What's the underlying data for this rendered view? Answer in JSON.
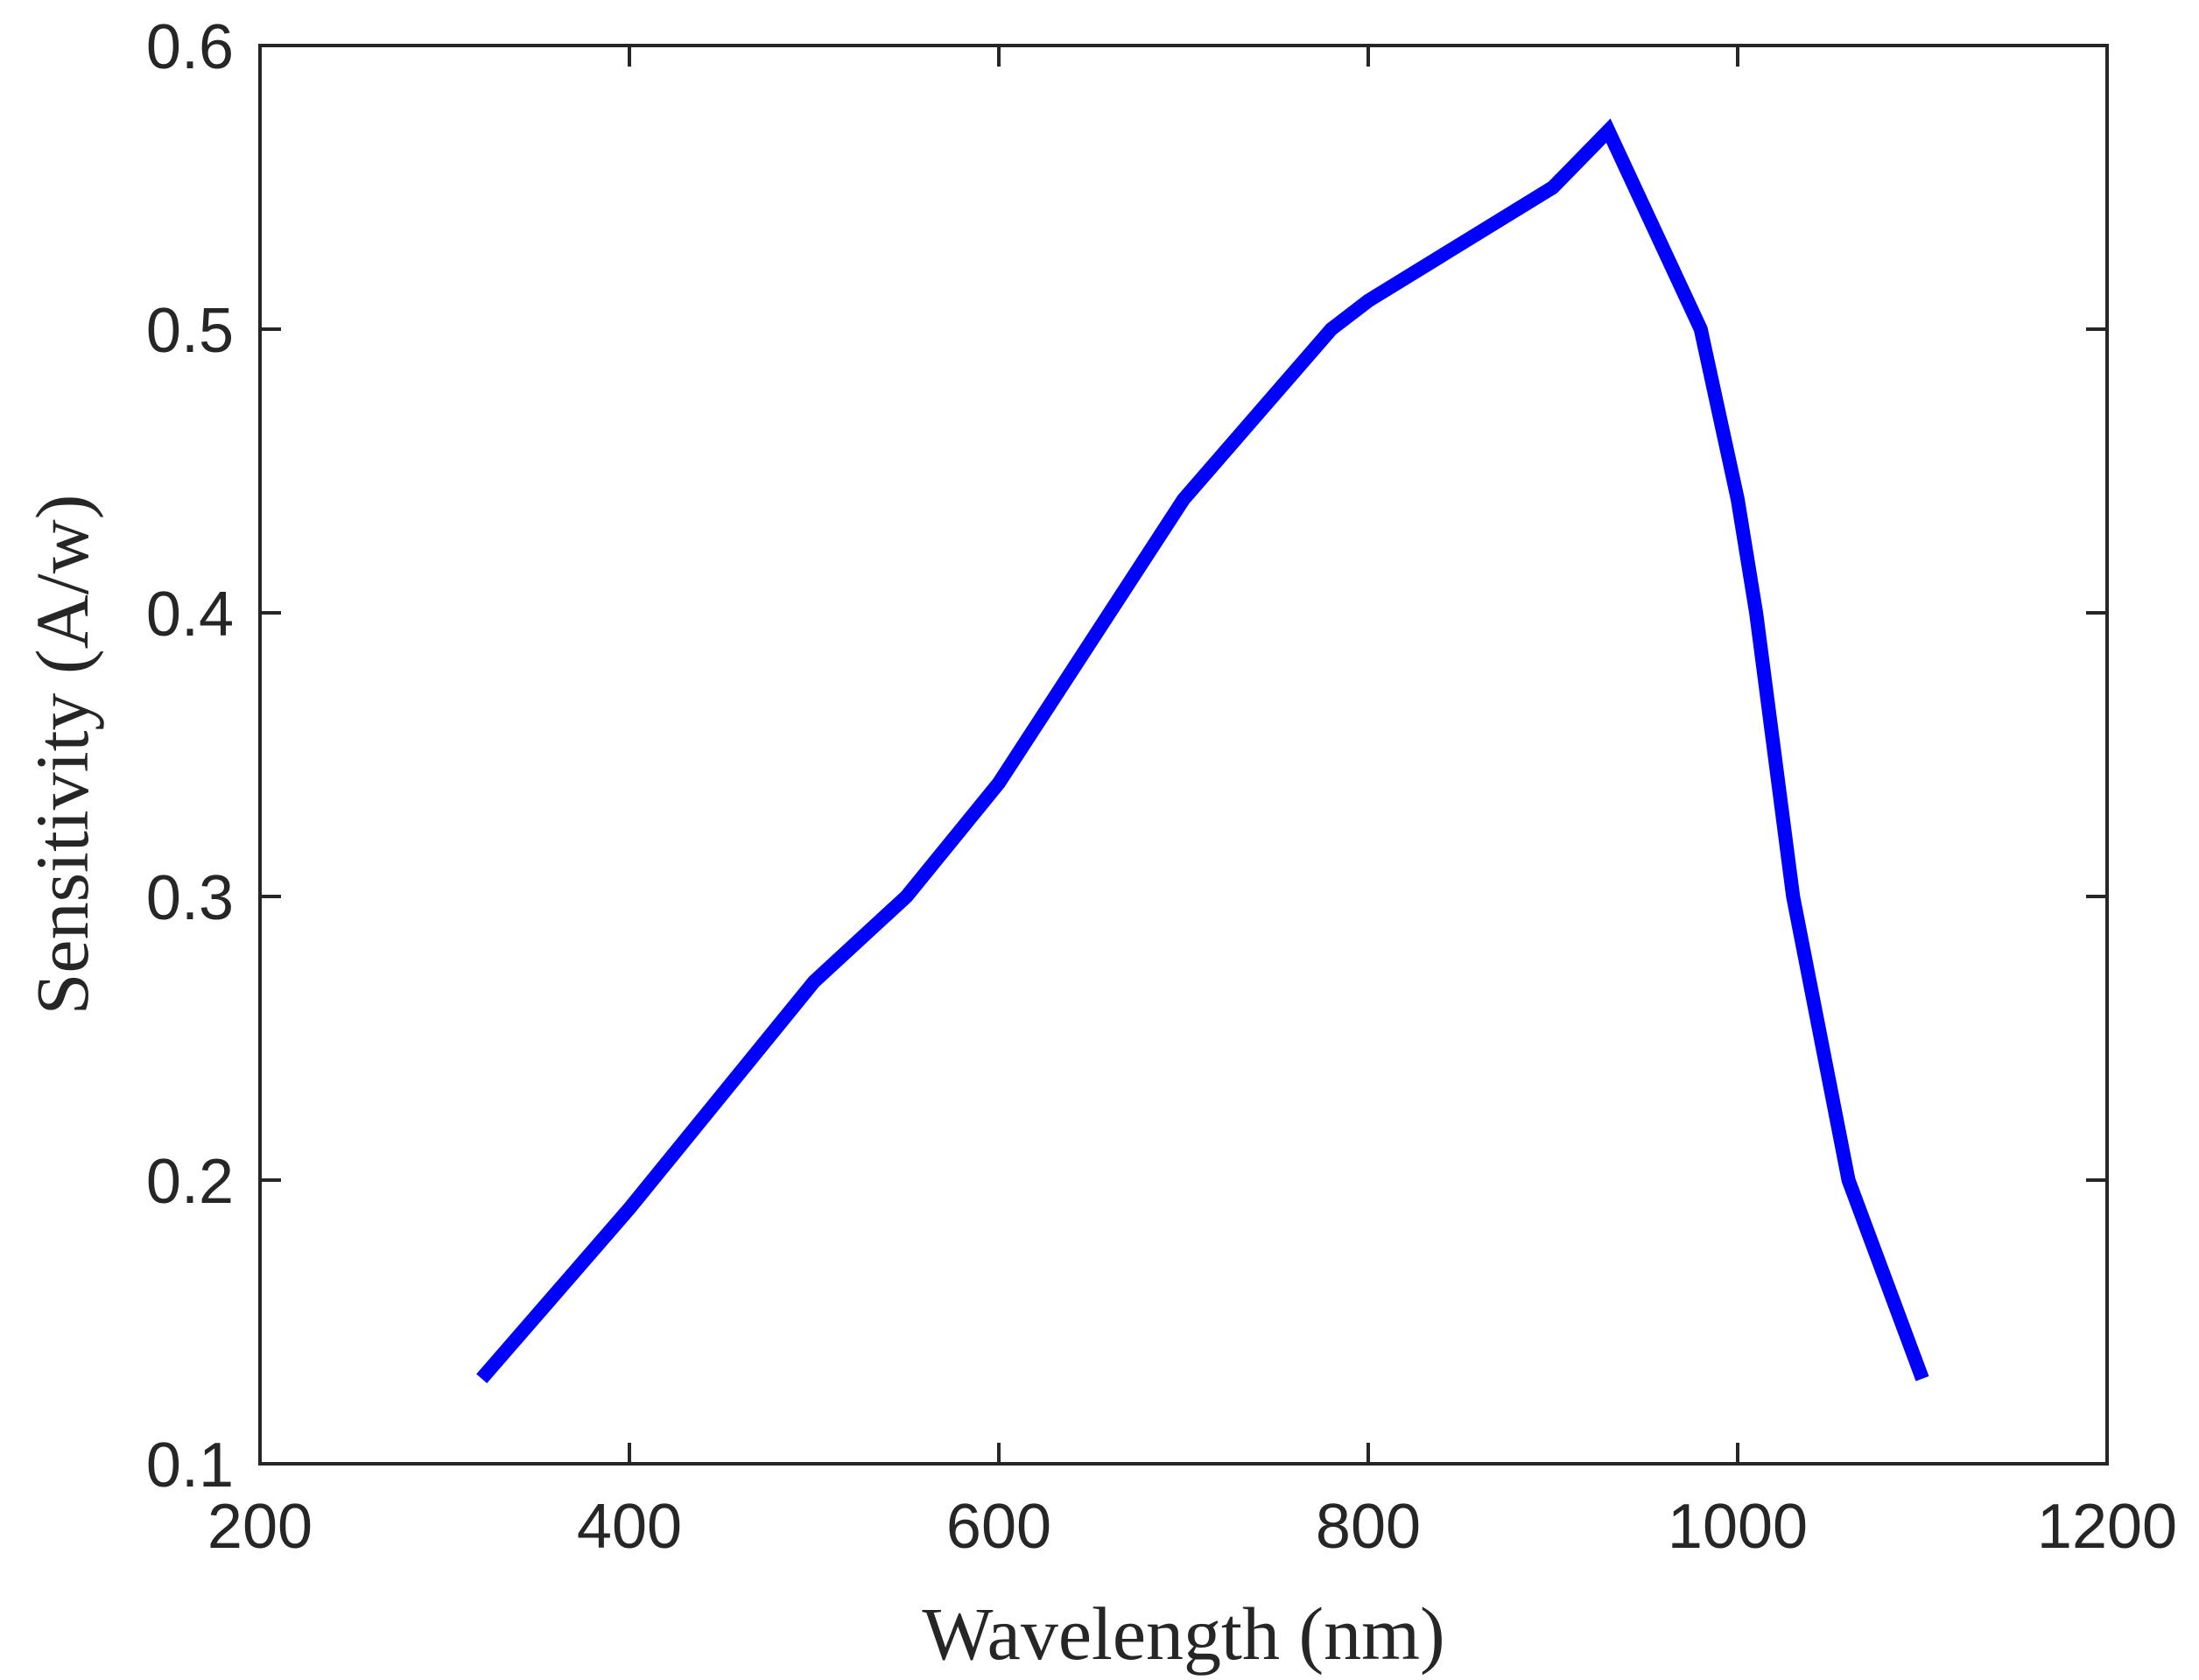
{
  "chart_data": {
    "type": "line",
    "title": "",
    "xlabel": "Wavelength (nm)",
    "ylabel": "Sensitivity (A/w)",
    "xlim": [
      200,
      1200
    ],
    "ylim": [
      0.1,
      0.6
    ],
    "xticks": [
      200,
      400,
      600,
      800,
      1000,
      1200
    ],
    "yticks": [
      0.1,
      0.2,
      0.3,
      0.4,
      0.5,
      0.6
    ],
    "xtick_labels": [
      "200",
      "400",
      "600",
      "800",
      "1000",
      "1200"
    ],
    "ytick_labels": [
      "0.1",
      "0.2",
      "0.3",
      "0.4",
      "0.5",
      "0.6"
    ],
    "grid": false,
    "legend": "none",
    "series": [
      {
        "color": "#0000ff",
        "x": [
          320,
          400,
          500,
          550,
          600,
          650,
          700,
          780,
          800,
          900,
          930,
          980,
          1000,
          1010,
          1030,
          1060,
          1100
        ],
        "y": [
          0.13,
          0.19,
          0.27,
          0.3,
          0.34,
          0.39,
          0.44,
          0.5,
          0.51,
          0.55,
          0.57,
          0.5,
          0.44,
          0.4,
          0.3,
          0.2,
          0.13
        ]
      }
    ]
  }
}
